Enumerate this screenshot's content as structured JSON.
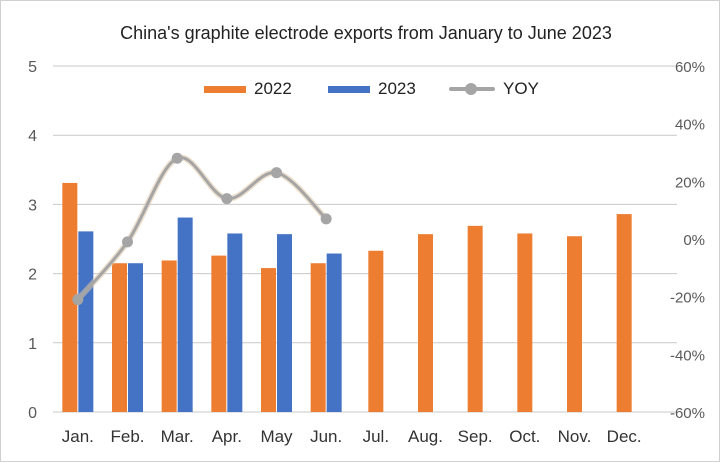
{
  "chart_data": {
    "type": "bar",
    "title": "China's graphite electrode exports from January to June 2023",
    "categories": [
      "Jan.",
      "Feb.",
      "Mar.",
      "Apr.",
      "May",
      "Jun.",
      "Jul.",
      "Aug.",
      "Sep.",
      "Oct.",
      "Nov.",
      "Dec."
    ],
    "series": [
      {
        "name": "2022",
        "kind": "bar",
        "axis": "left",
        "color": "#ED7D31",
        "values": [
          3.31,
          2.15,
          2.19,
          2.26,
          2.08,
          2.15,
          2.33,
          2.57,
          2.69,
          2.58,
          2.54,
          2.86
        ]
      },
      {
        "name": "2023",
        "kind": "bar",
        "axis": "left",
        "color": "#4472C4",
        "values": [
          2.61,
          2.15,
          2.81,
          2.58,
          2.57,
          2.29,
          null,
          null,
          null,
          null,
          null,
          null
        ]
      },
      {
        "name": "YOY",
        "kind": "line",
        "axis": "right",
        "color": "#A5A5A5",
        "smooth": true,
        "unit": "%",
        "values": [
          -21,
          -1,
          28,
          14,
          23,
          7,
          null,
          null,
          null,
          null,
          null,
          null
        ]
      }
    ],
    "ylim": [
      0,
      5
    ],
    "yticks": [
      0,
      1,
      2,
      3,
      4,
      5
    ],
    "y2lim": [
      -60,
      60
    ],
    "y2ticks": [
      "-60%",
      "-40%",
      "-20%",
      "0%",
      "20%",
      "40%",
      "60%"
    ],
    "xlabel": "",
    "ylabel": "",
    "grid": true,
    "legend_position": "top"
  }
}
